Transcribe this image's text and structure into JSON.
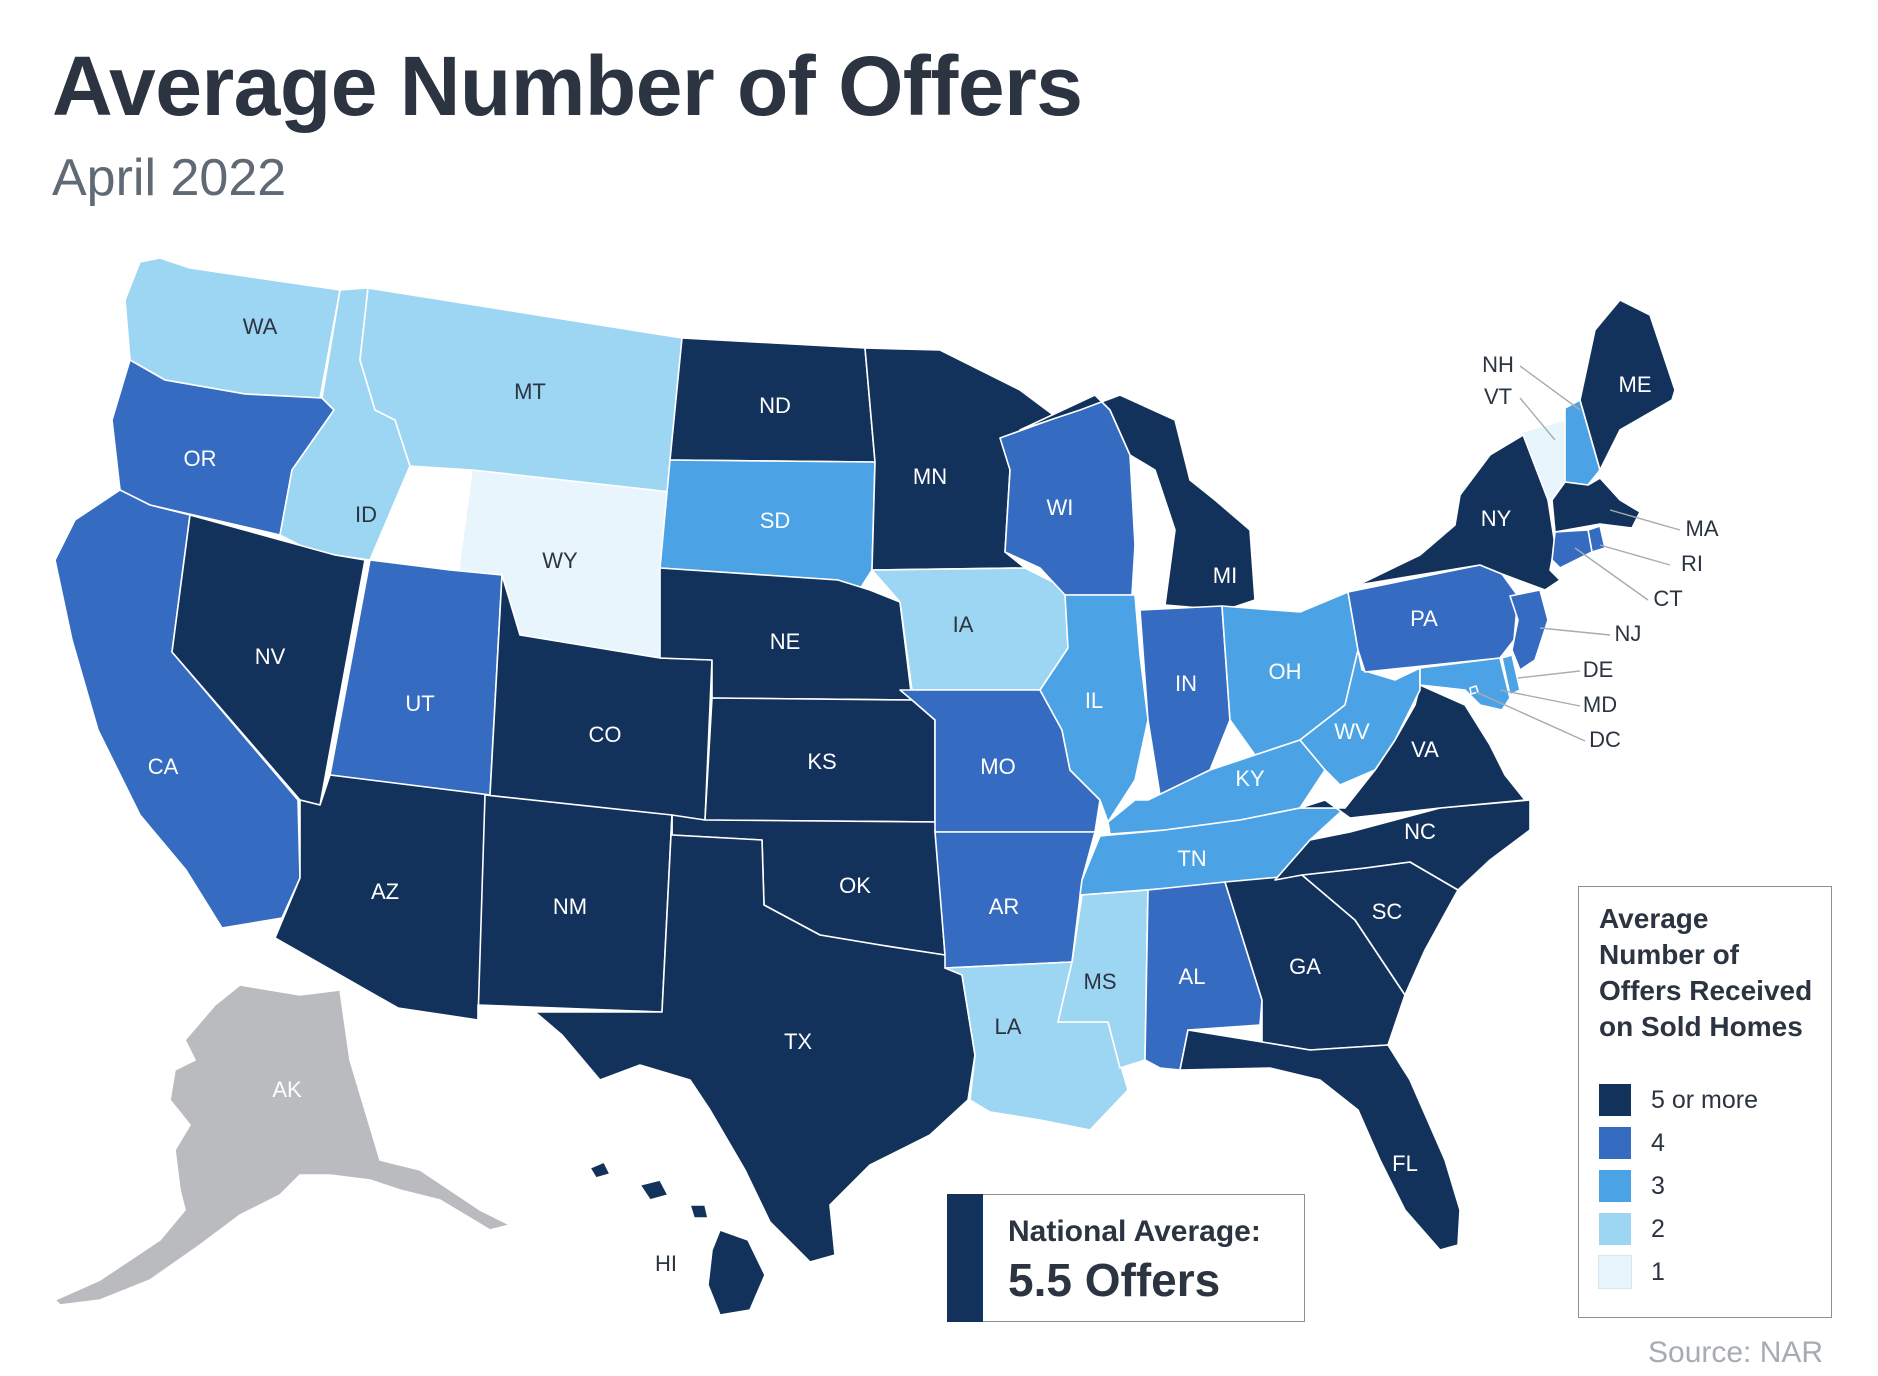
{
  "title": "Average Number of Offers",
  "subtitle": "April 2022",
  "colors": {
    "5": "#13325b",
    "4": "#356bc0",
    "3": "#4ba3e6",
    "2": "#9dd6f3",
    "1": "#e8f5fc",
    "na": "#b9bbbe",
    "label_dark_bg": "#ffffff",
    "label_light_bg": "#2b3440"
  },
  "legend": {
    "title": "Average Number of Offers Received on Sold Homes",
    "items": [
      {
        "label": "5 or more",
        "level": "5"
      },
      {
        "label": "4",
        "level": "4"
      },
      {
        "label": "3",
        "level": "3"
      },
      {
        "label": "2",
        "level": "2"
      },
      {
        "label": "1",
        "level": "1"
      }
    ]
  },
  "national_average": {
    "label": "National Average:",
    "value": "5.5 Offers"
  },
  "source": "Source: NAR",
  "states": [
    {
      "abbr": "WA",
      "level": "2"
    },
    {
      "abbr": "OR",
      "level": "4"
    },
    {
      "abbr": "CA",
      "level": "4"
    },
    {
      "abbr": "ID",
      "level": "2"
    },
    {
      "abbr": "NV",
      "level": "5"
    },
    {
      "abbr": "MT",
      "level": "2"
    },
    {
      "abbr": "WY",
      "level": "1"
    },
    {
      "abbr": "UT",
      "level": "4"
    },
    {
      "abbr": "AZ",
      "level": "5"
    },
    {
      "abbr": "CO",
      "level": "5"
    },
    {
      "abbr": "NM",
      "level": "5"
    },
    {
      "abbr": "ND",
      "level": "5"
    },
    {
      "abbr": "SD",
      "level": "3"
    },
    {
      "abbr": "NE",
      "level": "5"
    },
    {
      "abbr": "KS",
      "level": "5"
    },
    {
      "abbr": "OK",
      "level": "5"
    },
    {
      "abbr": "TX",
      "level": "5"
    },
    {
      "abbr": "MN",
      "level": "5"
    },
    {
      "abbr": "IA",
      "level": "2"
    },
    {
      "abbr": "MO",
      "level": "4"
    },
    {
      "abbr": "AR",
      "level": "4"
    },
    {
      "abbr": "LA",
      "level": "2"
    },
    {
      "abbr": "WI",
      "level": "4"
    },
    {
      "abbr": "IL",
      "level": "3"
    },
    {
      "abbr": "MI",
      "level": "5"
    },
    {
      "abbr": "IN",
      "level": "4"
    },
    {
      "abbr": "OH",
      "level": "3"
    },
    {
      "abbr": "KY",
      "level": "3"
    },
    {
      "abbr": "TN",
      "level": "3"
    },
    {
      "abbr": "MS",
      "level": "2"
    },
    {
      "abbr": "AL",
      "level": "4"
    },
    {
      "abbr": "GA",
      "level": "5"
    },
    {
      "abbr": "FL",
      "level": "5"
    },
    {
      "abbr": "SC",
      "level": "5"
    },
    {
      "abbr": "NC",
      "level": "5"
    },
    {
      "abbr": "VA",
      "level": "5"
    },
    {
      "abbr": "WV",
      "level": "3"
    },
    {
      "abbr": "PA",
      "level": "4"
    },
    {
      "abbr": "NY",
      "level": "5"
    },
    {
      "abbr": "VT",
      "level": "1"
    },
    {
      "abbr": "NH",
      "level": "3"
    },
    {
      "abbr": "ME",
      "level": "5"
    },
    {
      "abbr": "MA",
      "level": "5"
    },
    {
      "abbr": "RI",
      "level": "4"
    },
    {
      "abbr": "CT",
      "level": "4"
    },
    {
      "abbr": "NJ",
      "level": "4"
    },
    {
      "abbr": "DE",
      "level": "3"
    },
    {
      "abbr": "MD",
      "level": "3"
    },
    {
      "abbr": "DC",
      "level": "3"
    },
    {
      "abbr": "AK",
      "level": "na"
    },
    {
      "abbr": "HI",
      "level": "5"
    }
  ]
}
